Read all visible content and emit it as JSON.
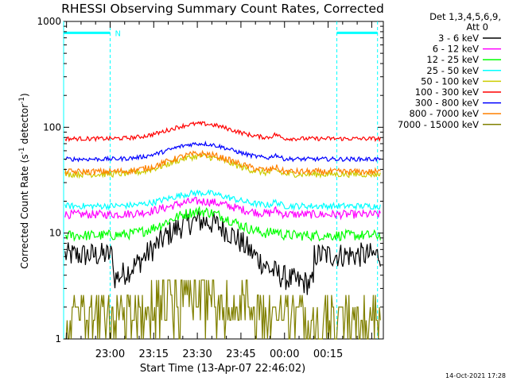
{
  "chart_data": {
    "type": "line",
    "title": "RHESSI Observing Summary Count Rates, Corrected",
    "xlabel": "Start Time (13-Apr-07 22:46:02)",
    "ylabel_main": "Corrected Count Rate (s",
    "ylabel_sup1": "-1",
    "ylabel_mid": " detector",
    "ylabel_sup2": "-1",
    "ylabel_end": ")",
    "yscale": "log",
    "ylim": [
      1,
      1000
    ],
    "xlim_minutes": [
      -16,
      94
    ],
    "x_unit": "minutes after 23:00 on 13-Apr-07",
    "x_ticks": [
      {
        "label": "23:00",
        "value": 0
      },
      {
        "label": "23:15",
        "value": 15
      },
      {
        "label": "23:30",
        "value": 30
      },
      {
        "label": "23:45",
        "value": 45
      },
      {
        "label": "00:00",
        "value": 60
      },
      {
        "label": "00:15",
        "value": 75
      }
    ],
    "y_ticks": [
      {
        "label": "1",
        "value": 1
      },
      {
        "label": "10",
        "value": 10
      },
      {
        "label": "100",
        "value": 100
      },
      {
        "label": "1000",
        "value": 1000
      }
    ],
    "legend_header": [
      "Det 1,3,4,5,6,9,",
      "Att 0"
    ],
    "legend_position": "right",
    "series": [
      {
        "name": "3 - 6 keV",
        "color": "#000000",
        "base": 6.2,
        "peak": 13,
        "noise": 0.12,
        "dip_low": 3.3
      },
      {
        "name": "6 - 12 keV",
        "color": "#ff00ff",
        "base": 15,
        "peak": 20,
        "noise": 0.04
      },
      {
        "name": "12 - 25 keV",
        "color": "#00ff00",
        "base": 9.5,
        "peak": 16,
        "noise": 0.05
      },
      {
        "name": "25 - 50 keV",
        "color": "#00ffff",
        "base": 18,
        "peak": 24,
        "noise": 0.03
      },
      {
        "name": "50 - 100 keV",
        "color": "#cccc00",
        "base": 36,
        "peak": 53,
        "noise": 0.03
      },
      {
        "name": "100 - 300 keV",
        "color": "#ff0000",
        "base": 78,
        "peak": 108,
        "noise": 0.02
      },
      {
        "name": "300 - 800 keV",
        "color": "#0000ff",
        "base": 50,
        "peak": 70,
        "noise": 0.02
      },
      {
        "name": "800 - 7000 keV",
        "color": "#ff8000",
        "base": 38,
        "peak": 56,
        "noise": 0.03
      },
      {
        "name": "7000 - 15000 keV",
        "color": "#808000",
        "base": 1.5,
        "peak": 3.6,
        "noise": 0.3
      }
    ],
    "annotations": [
      {
        "type": "night_flag",
        "label": "N",
        "color": "#00ffff",
        "x_from": -16,
        "x_to": 0,
        "y_value": 780
      },
      {
        "type": "night_flag",
        "label": "",
        "color": "#00ffff",
        "x_from": 78,
        "x_to": 92,
        "y_value": 780
      }
    ]
  },
  "footer": {
    "timestamp": "14-Oct-2021 17:28"
  }
}
